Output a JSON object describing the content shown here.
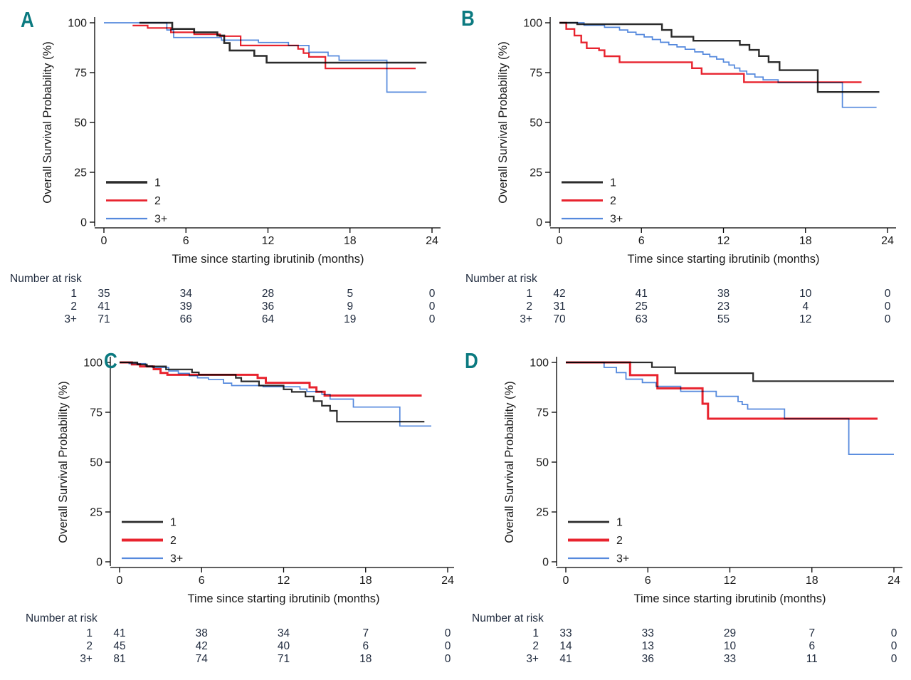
{
  "figure": {
    "background": "#ffffff",
    "letter_color": "#0b7a80",
    "axis_color": "#000000",
    "text_color": "#1a1a1a",
    "risk_text_color": "#1f2a3d"
  },
  "series_colors": {
    "1": "#2b2b2b",
    "2": "#e8232e",
    "3+": "#5589dd"
  },
  "chart_data": [
    {
      "panel": "A",
      "type": "line",
      "step": true,
      "xlabel": "Time since starting ibrutinib (months)",
      "ylabel": "Overall Survival Probability (%)",
      "xlim": [
        0,
        24
      ],
      "ylim": [
        0,
        100
      ],
      "xticks": [
        0,
        6,
        12,
        18,
        24
      ],
      "yticks": [
        0,
        25,
        50,
        75,
        100
      ],
      "grid": false,
      "legend_position": "inside-lower-left",
      "x_shift": 0,
      "series": [
        {
          "name": "1",
          "color": "#2b2b2b",
          "width": 2.6,
          "points": [
            [
              2.6,
              100
            ],
            [
              5.0,
              96.9
            ],
            [
              6.6,
              95.2
            ],
            [
              8.3,
              93.6
            ],
            [
              8.8,
              89.8
            ],
            [
              9.2,
              86.1
            ],
            [
              11.0,
              83.4
            ],
            [
              11.9,
              80.0
            ],
            [
              23.6,
              80.0
            ]
          ]
        },
        {
          "name": "2",
          "color": "#e8232e",
          "width": 2.2,
          "points": [
            [
              2.1,
              98.6
            ],
            [
              3.2,
              97.4
            ],
            [
              4.9,
              95.2
            ],
            [
              6.6,
              94.2
            ],
            [
              8.5,
              93.3
            ],
            [
              10.0,
              88.6
            ],
            [
              14.2,
              86.9
            ],
            [
              14.6,
              84.8
            ],
            [
              15.0,
              82.9
            ],
            [
              16.2,
              77.1
            ],
            [
              22.8,
              77.1
            ]
          ]
        },
        {
          "name": "3+",
          "color": "#5589dd",
          "width": 1.7,
          "points": [
            [
              0,
              100
            ],
            [
              4.6,
              96.4
            ],
            [
              5.1,
              92.6
            ],
            [
              8.6,
              91.3
            ],
            [
              11.3,
              90.1
            ],
            [
              13.5,
              88.6
            ],
            [
              15.0,
              85.2
            ],
            [
              16.4,
              83.4
            ],
            [
              17.2,
              81.2
            ],
            [
              20.7,
              65.2
            ],
            [
              23.6,
              65.2
            ]
          ]
        }
      ],
      "risk_table": {
        "title": "Number at risk",
        "times": [
          0,
          6,
          12,
          18,
          24
        ],
        "rows": [
          {
            "label": "1",
            "values": [
              35,
              34,
              28,
              5,
              0
            ]
          },
          {
            "label": "2",
            "values": [
              41,
              39,
              36,
              9,
              0
            ]
          },
          {
            "label": "3+",
            "values": [
              71,
              66,
              64,
              19,
              0
            ]
          }
        ]
      }
    },
    {
      "panel": "B",
      "type": "line",
      "step": true,
      "xlabel": "Time since starting ibrutinib (months)",
      "ylabel": "Overall Survival Probability (%)",
      "xlim": [
        0,
        24
      ],
      "ylim": [
        0,
        100
      ],
      "xticks": [
        0,
        6,
        12,
        18,
        24
      ],
      "yticks": [
        0,
        25,
        50,
        75,
        100
      ],
      "grid": false,
      "legend_position": "inside-lower-left",
      "x_shift": 0,
      "series": [
        {
          "name": "1",
          "color": "#2b2b2b",
          "width": 2.4,
          "points": [
            [
              0,
              100
            ],
            [
              1.3,
              99.3
            ],
            [
              7.5,
              96.4
            ],
            [
              8.2,
              93.0
            ],
            [
              9.8,
              91.0
            ],
            [
              13.2,
              88.9
            ],
            [
              13.9,
              86.4
            ],
            [
              14.6,
              83.3
            ],
            [
              15.3,
              80.3
            ],
            [
              16.1,
              76.2
            ],
            [
              18.9,
              65.3
            ],
            [
              23.4,
              65.3
            ]
          ]
        },
        {
          "name": "2",
          "color": "#e8232e",
          "width": 2.4,
          "points": [
            [
              0,
              100
            ],
            [
              0.5,
              96.9
            ],
            [
              1.1,
              93.6
            ],
            [
              1.6,
              90.1
            ],
            [
              2.0,
              87.2
            ],
            [
              2.9,
              86.2
            ],
            [
              3.3,
              83.2
            ],
            [
              4.4,
              80.2
            ],
            [
              9.7,
              77.2
            ],
            [
              10.4,
              74.4
            ],
            [
              13.5,
              70.2
            ],
            [
              22.1,
              70.2
            ]
          ]
        },
        {
          "name": "3+",
          "color": "#5589dd",
          "width": 1.7,
          "points": [
            [
              0,
              100
            ],
            [
              1.8,
              98.8
            ],
            [
              3.3,
              97.7
            ],
            [
              4.4,
              96.4
            ],
            [
              5.0,
              95.3
            ],
            [
              5.6,
              94.1
            ],
            [
              6.2,
              92.9
            ],
            [
              6.8,
              91.6
            ],
            [
              7.4,
              90.2
            ],
            [
              8.0,
              89.0
            ],
            [
              8.6,
              87.9
            ],
            [
              9.2,
              86.7
            ],
            [
              9.9,
              85.4
            ],
            [
              10.5,
              84.2
            ],
            [
              11.0,
              83.0
            ],
            [
              11.5,
              81.8
            ],
            [
              12.0,
              80.3
            ],
            [
              12.4,
              78.8
            ],
            [
              12.8,
              77.3
            ],
            [
              13.2,
              75.8
            ],
            [
              13.7,
              74.3
            ],
            [
              14.3,
              72.8
            ],
            [
              14.9,
              71.4
            ],
            [
              16.0,
              70.0
            ],
            [
              20.7,
              57.6
            ],
            [
              23.2,
              57.6
            ]
          ]
        }
      ],
      "risk_table": {
        "title": "Number at risk",
        "times": [
          0,
          6,
          12,
          18,
          24
        ],
        "rows": [
          {
            "label": "1",
            "values": [
              42,
              41,
              38,
              10,
              0
            ]
          },
          {
            "label": "2",
            "values": [
              31,
              25,
              23,
              4,
              0
            ]
          },
          {
            "label": "3+",
            "values": [
              70,
              63,
              55,
              12,
              0
            ]
          }
        ]
      }
    },
    {
      "panel": "C",
      "type": "line",
      "step": true,
      "xlabel": "Time since starting ibrutinib (months)",
      "ylabel": "Overall Survival Probability (%)",
      "xlim": [
        0,
        24
      ],
      "ylim": [
        0,
        100
      ],
      "xticks": [
        0,
        6,
        12,
        18,
        24
      ],
      "yticks": [
        0,
        25,
        50,
        75,
        100
      ],
      "grid": false,
      "legend_position": "inside-lower-left",
      "x_shift": 22,
      "series": [
        {
          "name": "1",
          "color": "#2b2b2b",
          "width": 2.2,
          "points": [
            [
              0,
              100
            ],
            [
              1.3,
              99.0
            ],
            [
              2.0,
              98.0
            ],
            [
              3.4,
              96.5
            ],
            [
              5.3,
              95.0
            ],
            [
              5.8,
              93.8
            ],
            [
              8.5,
              92.3
            ],
            [
              8.9,
              90.5
            ],
            [
              10.2,
              88.4
            ],
            [
              12.0,
              86.5
            ],
            [
              12.6,
              85.2
            ],
            [
              13.6,
              82.9
            ],
            [
              14.2,
              80.6
            ],
            [
              14.8,
              78.3
            ],
            [
              15.4,
              75.7
            ],
            [
              15.9,
              70.3
            ],
            [
              22.3,
              70.3
            ]
          ]
        },
        {
          "name": "2",
          "color": "#e8232e",
          "width": 3.0,
          "points": [
            [
              0,
              100
            ],
            [
              0.9,
              99.0
            ],
            [
              1.5,
              98.0
            ],
            [
              2.5,
              96.6
            ],
            [
              3.0,
              94.7
            ],
            [
              3.5,
              93.8
            ],
            [
              10.1,
              92.2
            ],
            [
              10.7,
              89.8
            ],
            [
              13.9,
              87.5
            ],
            [
              14.4,
              85.3
            ],
            [
              15.0,
              83.4
            ],
            [
              22.1,
              83.4
            ]
          ]
        },
        {
          "name": "3+",
          "color": "#5589dd",
          "width": 1.7,
          "points": [
            [
              0,
              100
            ],
            [
              0.7,
              99.4
            ],
            [
              1.9,
              98.2
            ],
            [
              2.4,
              97.5
            ],
            [
              3.6,
              95.7
            ],
            [
              4.3,
              94.5
            ],
            [
              5.1,
              93.3
            ],
            [
              5.7,
              92.3
            ],
            [
              6.5,
              91.5
            ],
            [
              7.6,
              89.6
            ],
            [
              8.2,
              88.4
            ],
            [
              10.5,
              87.8
            ],
            [
              13.2,
              86.6
            ],
            [
              13.7,
              85.4
            ],
            [
              14.8,
              84.0
            ],
            [
              15.4,
              81.6
            ],
            [
              17.1,
              77.6
            ],
            [
              20.5,
              68.1
            ],
            [
              22.8,
              68.1
            ]
          ]
        }
      ],
      "risk_table": {
        "title": "Number at risk",
        "times": [
          0,
          6,
          12,
          18,
          24
        ],
        "rows": [
          {
            "label": "1",
            "values": [
              41,
              38,
              34,
              7,
              0
            ]
          },
          {
            "label": "2",
            "values": [
              45,
              42,
              40,
              6,
              0
            ]
          },
          {
            "label": "3+",
            "values": [
              81,
              74,
              71,
              18,
              0
            ]
          }
        ]
      }
    },
    {
      "panel": "D",
      "type": "line",
      "step": true,
      "xlabel": "Time since starting ibrutinib (months)",
      "ylabel": "Overall Survival Probability (%)",
      "xlim": [
        0,
        24
      ],
      "ylim": [
        0,
        100
      ],
      "xticks": [
        0,
        6,
        12,
        18,
        24
      ],
      "yticks": [
        0,
        25,
        50,
        75,
        100
      ],
      "grid": false,
      "legend_position": "inside-lower-left",
      "x_shift": 9,
      "series": [
        {
          "name": "1",
          "color": "#2b2b2b",
          "width": 2.2,
          "points": [
            [
              0,
              100
            ],
            [
              6.3,
              97.6
            ],
            [
              8.0,
              94.6
            ],
            [
              13.7,
              90.6
            ],
            [
              24,
              90.6
            ]
          ]
        },
        {
          "name": "2",
          "color": "#e8232e",
          "width": 3.0,
          "points": [
            [
              0,
              100
            ],
            [
              4.7,
              93.6
            ],
            [
              6.7,
              87.0
            ],
            [
              10.0,
              79.3
            ],
            [
              10.4,
              71.8
            ],
            [
              22.8,
              71.8
            ]
          ]
        },
        {
          "name": "3+",
          "color": "#5589dd",
          "width": 1.8,
          "points": [
            [
              0,
              100
            ],
            [
              2.8,
              97.5
            ],
            [
              3.7,
              94.9
            ],
            [
              4.4,
              91.6
            ],
            [
              5.6,
              89.9
            ],
            [
              6.6,
              88.0
            ],
            [
              8.4,
              85.5
            ],
            [
              11.0,
              83.0
            ],
            [
              12.6,
              80.4
            ],
            [
              12.9,
              78.9
            ],
            [
              13.3,
              76.6
            ],
            [
              16.0,
              71.8
            ],
            [
              20.7,
              53.9
            ],
            [
              24,
              53.9
            ]
          ]
        }
      ],
      "risk_table": {
        "title": "Number at risk",
        "times": [
          0,
          6,
          12,
          18,
          24
        ],
        "rows": [
          {
            "label": "1",
            "values": [
              33,
              33,
              29,
              7,
              0
            ]
          },
          {
            "label": "2",
            "values": [
              14,
              13,
              10,
              6,
              0
            ]
          },
          {
            "label": "3+",
            "values": [
              41,
              36,
              33,
              11,
              0
            ]
          }
        ]
      }
    }
  ]
}
